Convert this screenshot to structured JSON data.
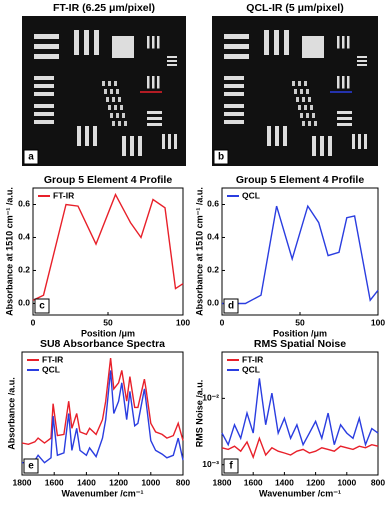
{
  "images": [
    {
      "title": "FT-IR (6.25 μm/pixel)",
      "panel_label": "a"
    },
    {
      "title": "QCL-IR (5 μm/pixel)",
      "panel_label": "b"
    }
  ],
  "chart_data": [
    {
      "type": "line",
      "title": "Group 5 Element 4 Profile",
      "panel_label": "c",
      "x_label": "Position /μm",
      "y_label": "Absorbance at 1510 cm⁻¹ /a.u.",
      "xlim": [
        0,
        100
      ],
      "xticks": [
        0,
        50,
        100
      ],
      "ylim": [
        -0.07,
        0.7
      ],
      "yticks": [
        {
          "value": 0,
          "label": "0.0"
        },
        0.2,
        0.4,
        0.6
      ],
      "legend": "upper left",
      "series": [
        {
          "name": "FT-IR",
          "color": "#e8202a",
          "x": [
            0,
            7,
            22,
            30,
            42,
            55,
            65,
            72,
            80,
            88,
            95,
            100
          ],
          "values": [
            0.02,
            0.05,
            0.6,
            0.59,
            0.36,
            0.66,
            0.49,
            0.4,
            0.63,
            0.58,
            0.09,
            0.12
          ]
        }
      ]
    },
    {
      "type": "line",
      "title": "Group 5 Element 4 Profile",
      "panel_label": "d",
      "x_label": "Position /μm",
      "y_label": "Absorbance at 1510 cm⁻¹ /a.u.",
      "xlim": [
        0,
        100
      ],
      "xticks": [
        0,
        50,
        100
      ],
      "ylim": [
        -0.07,
        0.7
      ],
      "yticks": [
        {
          "value": 0,
          "label": "0.0"
        },
        0.2,
        0.4,
        0.6
      ],
      "legend": "upper left",
      "series": [
        {
          "name": "QCL",
          "color": "#2a3de0",
          "x": [
            0,
            15,
            25,
            35,
            45,
            55,
            62,
            68,
            75,
            80,
            85,
            95,
            100
          ],
          "values": [
            0,
            0,
            0.05,
            0.59,
            0.27,
            0.59,
            0.49,
            0.29,
            0.31,
            0.52,
            0.53,
            0.02,
            0.08
          ]
        }
      ]
    },
    {
      "type": "line",
      "title": "SU8 Absorbance Spectra",
      "panel_label": "e",
      "x_label": "Wavenumber /cm⁻¹",
      "y_label": "Absorbance /a.u.",
      "xlim": [
        1800,
        800
      ],
      "xticks": [
        1800,
        1600,
        1400,
        1200,
        1000,
        800
      ],
      "ylim": [
        0,
        1
      ],
      "yticks": [],
      "legend": "upper left",
      "x": [
        1800,
        1760,
        1720,
        1700,
        1660,
        1620,
        1607,
        1580,
        1540,
        1510,
        1490,
        1460,
        1440,
        1400,
        1380,
        1340,
        1300,
        1280,
        1250,
        1230,
        1200,
        1180,
        1150,
        1130,
        1100,
        1080,
        1040,
        1030,
        1000,
        970,
        930,
        900,
        860,
        830,
        800
      ],
      "series": [
        {
          "name": "FT-IR",
          "color": "#e8202a",
          "values": [
            0.26,
            0.25,
            0.27,
            0.3,
            0.26,
            0.3,
            0.58,
            0.32,
            0.33,
            0.6,
            0.38,
            0.5,
            0.35,
            0.33,
            0.38,
            0.33,
            0.45,
            0.6,
            0.95,
            0.7,
            0.75,
            0.85,
            0.6,
            0.8,
            0.55,
            0.55,
            0.78,
            0.7,
            0.42,
            0.35,
            0.33,
            0.3,
            0.32,
            0.42,
            0.28
          ]
        },
        {
          "name": "QCL",
          "color": "#2a3de0",
          "values": [
            0.1,
            0.1,
            0.12,
            0.16,
            0.1,
            0.14,
            0.48,
            0.16,
            0.18,
            0.5,
            0.2,
            0.38,
            0.2,
            0.16,
            0.22,
            0.15,
            0.3,
            0.45,
            0.85,
            0.5,
            0.6,
            0.75,
            0.45,
            0.68,
            0.4,
            0.42,
            0.7,
            0.6,
            0.28,
            0.2,
            0.17,
            0.14,
            0.16,
            0.3,
            0.12
          ]
        }
      ]
    },
    {
      "type": "line",
      "title": "RMS Spatial Noise",
      "panel_label": "f",
      "x_label": "Wavenumber /cm⁻¹",
      "y_label": "RMS Noise /a.u.",
      "xlim": [
        1800,
        800
      ],
      "xticks": [
        1800,
        1600,
        1400,
        1200,
        1000,
        800
      ],
      "ylim": [
        0.0007,
        0.05
      ],
      "log_y": true,
      "yticks": [
        {
          "value": 0.001,
          "label": "10⁻³"
        },
        {
          "value": 0.01,
          "label": "10⁻²"
        }
      ],
      "legend": "upper left",
      "x": [
        1800,
        1760,
        1720,
        1680,
        1640,
        1600,
        1560,
        1520,
        1480,
        1440,
        1400,
        1360,
        1320,
        1280,
        1240,
        1200,
        1160,
        1120,
        1080,
        1040,
        1000,
        960,
        920,
        880,
        840,
        800
      ],
      "series": [
        {
          "name": "FT-IR",
          "color": "#e8202a",
          "values": [
            0.0018,
            0.0017,
            0.0019,
            0.0016,
            0.0022,
            0.0013,
            0.0025,
            0.0014,
            0.0018,
            0.0016,
            0.0015,
            0.0014,
            0.0016,
            0.0017,
            0.0015,
            0.0016,
            0.0018,
            0.0017,
            0.0016,
            0.0019,
            0.0018,
            0.0017,
            0.0019,
            0.0018,
            0.002,
            0.0019
          ]
        },
        {
          "name": "QCL",
          "color": "#2a3de0",
          "values": [
            0.003,
            0.002,
            0.004,
            0.0025,
            0.006,
            0.003,
            0.02,
            0.004,
            0.012,
            0.003,
            0.005,
            0.0025,
            0.004,
            0.002,
            0.003,
            0.0045,
            0.0025,
            0.006,
            0.002,
            0.004,
            0.003,
            0.0025,
            0.005,
            0.002,
            0.0035,
            0.003
          ]
        }
      ]
    }
  ]
}
